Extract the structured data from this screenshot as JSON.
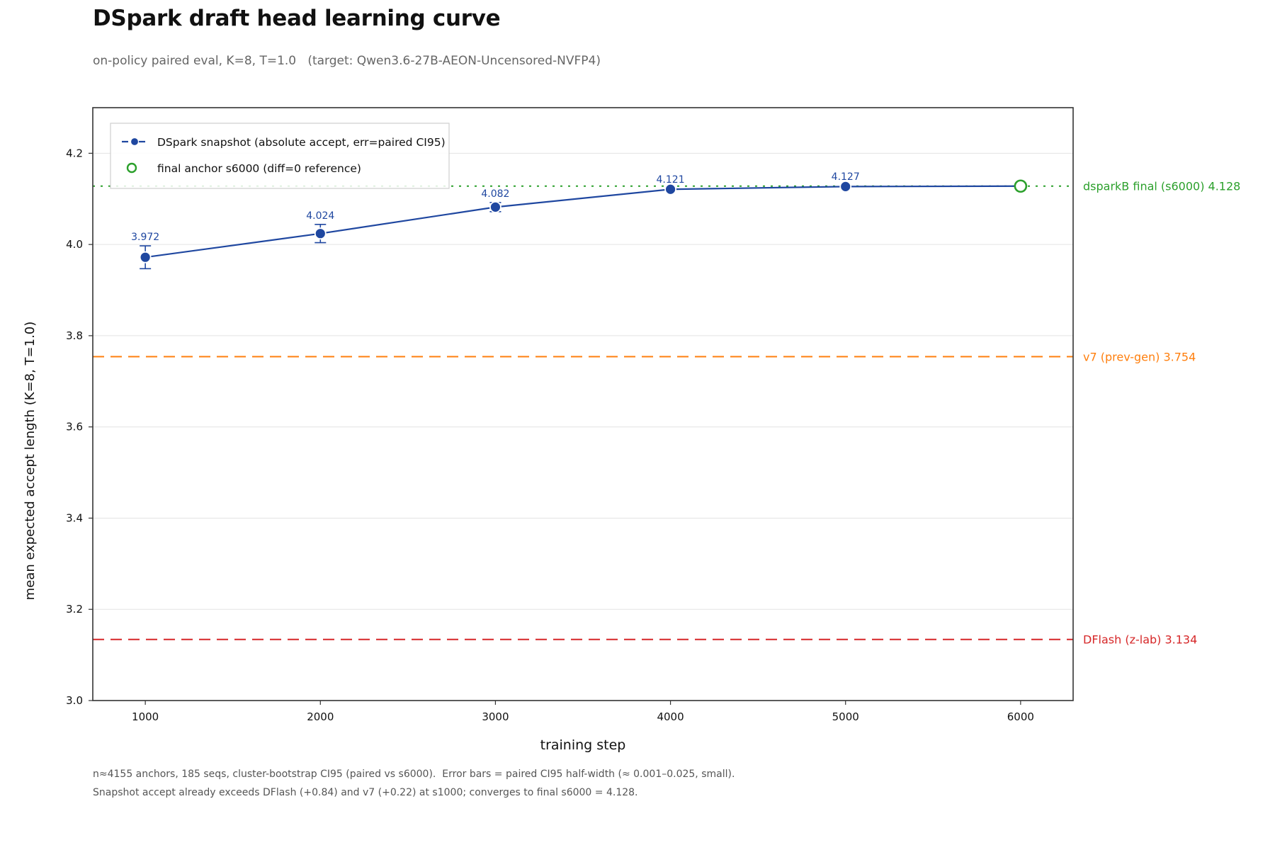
{
  "header": {
    "title": "DSpark draft head learning curve",
    "subtitle": "on-policy paired eval, K=8, T=1.0   (target: Qwen3.6-27B-AEON-Uncensored-NVFP4)"
  },
  "footnotes": [
    "n≈4155 anchors, 185 seqs, cluster-bootstrap CI95 (paired vs s6000).  Error bars = paired CI95 half-width (≈ 0.001–0.025, small).",
    "Snapshot accept already exceeds DFlash (+0.84) and v7 (+0.22) at s1000; converges to final s6000 = 4.128."
  ],
  "chart_data": {
    "type": "line",
    "xlabel": "training step",
    "ylabel": "mean expected accept length (K=8, T=1.0)",
    "xlim": [
      700,
      6300
    ],
    "ylim": [
      3.0,
      4.3
    ],
    "x_ticks": [
      1000,
      2000,
      3000,
      4000,
      5000,
      6000
    ],
    "y_ticks": [
      3.0,
      3.2,
      3.4,
      3.6,
      3.8,
      4.0,
      4.2
    ],
    "grid": "horizontal",
    "legend_position": "top-left",
    "series": [
      {
        "name": "DSpark snapshot  (absolute accept, err=paired CI95)",
        "color": "#1f47a0",
        "x": [
          1000,
          2000,
          3000,
          4000,
          5000,
          6000
        ],
        "y": [
          3.972,
          4.024,
          4.082,
          4.121,
          4.127,
          4.128
        ],
        "err": [
          0.025,
          0.02,
          0.01,
          0.002,
          0.002,
          0.0
        ],
        "labels": [
          "3.972",
          "4.024",
          "4.082",
          "4.121",
          "4.127",
          ""
        ]
      }
    ],
    "anchor": {
      "name": "final anchor s6000 (diff=0 reference)",
      "x": 6000,
      "y": 4.128,
      "color": "#2ca02c"
    },
    "reference_lines": [
      {
        "label": "dsparkB final (s6000)  4.128",
        "value": 4.128,
        "style": "dotted",
        "color": "#2ca02c"
      },
      {
        "label": "v7 (prev-gen)  3.754",
        "value": 3.754,
        "style": "dashed",
        "color": "#ff7f0e"
      },
      {
        "label": "DFlash (z-lab)  3.134",
        "value": 3.134,
        "style": "dashed",
        "color": "#d62728"
      }
    ]
  }
}
